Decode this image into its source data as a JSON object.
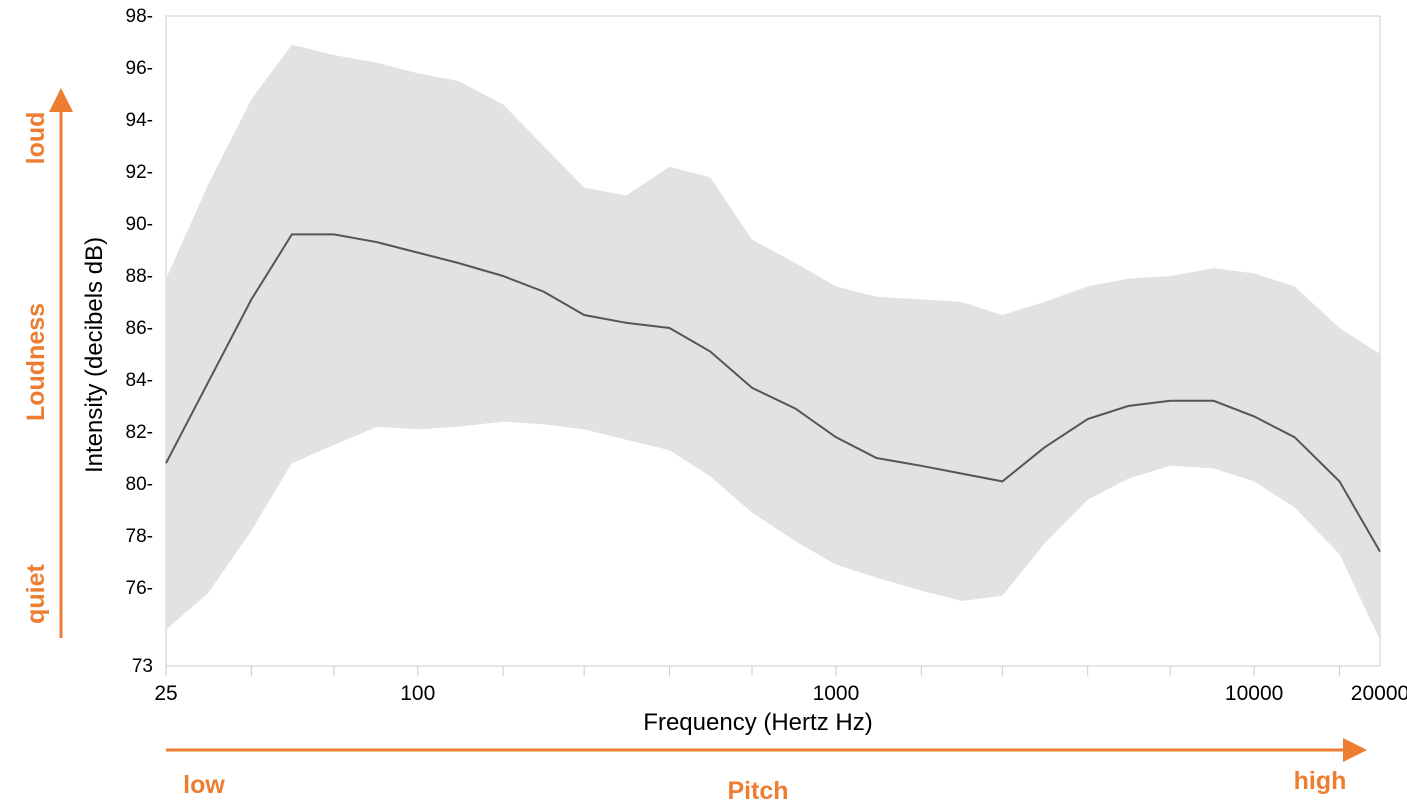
{
  "chart_data": {
    "type": "line",
    "xscale": "log",
    "xlabel": "Frequency (Hertz Hz)",
    "ylabel": "Intensity  (decibels dB)",
    "ylim": [
      73,
      98
    ],
    "xlim": [
      25,
      20000
    ],
    "yticks": [
      "98-",
      "96-",
      "94-",
      "92-",
      "90-",
      "88-",
      "86-",
      "84-",
      "82-",
      "80-",
      "78-",
      "76-",
      "73"
    ],
    "ytick_values": [
      98,
      96,
      94,
      92,
      90,
      88,
      86,
      84,
      82,
      80,
      78,
      76,
      73
    ],
    "xticks": [
      "25",
      "100",
      "1000",
      "10000",
      "20000"
    ],
    "xtick_values": [
      25,
      100,
      1000,
      10000,
      20000
    ],
    "x": [
      25,
      31.5,
      40,
      50,
      63,
      80,
      100,
      125,
      160,
      200,
      250,
      315,
      400,
      500,
      630,
      800,
      1000,
      1250,
      1600,
      2000,
      2500,
      3150,
      4000,
      5000,
      6300,
      8000,
      10000,
      12500,
      16000,
      20000
    ],
    "series": [
      {
        "values": [
          80.8,
          83.9,
          87.1,
          89.6,
          89.6,
          89.3,
          88.9,
          88.5,
          88.0,
          87.4,
          86.5,
          86.2,
          86.0,
          85.1,
          83.7,
          82.9,
          81.8,
          81.0,
          80.7,
          80.4,
          80.1,
          81.4,
          82.5,
          83.0,
          83.2,
          83.2,
          82.6,
          81.8,
          80.1,
          77.4
        ]
      }
    ],
    "band": {
      "upper": [
        87.9,
        91.5,
        94.8,
        96.9,
        96.5,
        96.2,
        95.8,
        95.5,
        94.6,
        93.0,
        91.4,
        91.1,
        92.2,
        91.8,
        89.4,
        88.5,
        87.6,
        87.2,
        87.1,
        87.0,
        86.5,
        87.0,
        87.6,
        87.9,
        88.0,
        88.3,
        88.1,
        87.6,
        86.0,
        85.0
      ],
      "lower": [
        74.4,
        75.8,
        78.2,
        80.8,
        81.5,
        82.2,
        82.1,
        82.2,
        82.4,
        82.3,
        82.1,
        81.7,
        81.3,
        80.3,
        78.9,
        77.8,
        76.9,
        76.4,
        75.9,
        75.5,
        75.7,
        77.7,
        79.4,
        80.2,
        80.7,
        80.6,
        80.1,
        79.1,
        77.3,
        74.0
      ]
    },
    "grid": false,
    "band_color": "#e2e2e2",
    "line_color": "#555555"
  },
  "annotations": {
    "loud": "loud",
    "loudness": "Loudness",
    "quiet": "quiet",
    "low": "low",
    "pitch": "Pitch",
    "high": "high",
    "accent_color": "#ED7D31"
  }
}
